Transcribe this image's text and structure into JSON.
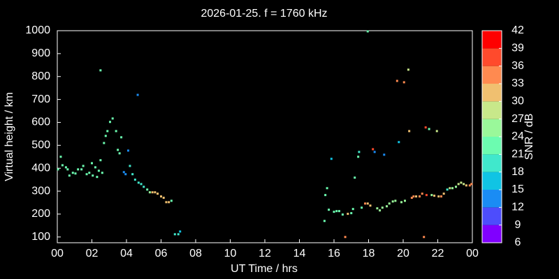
{
  "chart_data": {
    "type": "scatter",
    "title": "2026-01-25. f = 1760 kHz",
    "x_label": "UT Time / hrs",
    "y_label": "Virtual height / km",
    "xlim": [
      0,
      24
    ],
    "ylim": [
      75,
      1000
    ],
    "xticks": [
      {
        "value": 0,
        "label": "00"
      },
      {
        "value": 2,
        "label": "02"
      },
      {
        "value": 4,
        "label": "04"
      },
      {
        "value": 6,
        "label": "06"
      },
      {
        "value": 8,
        "label": "08"
      },
      10,
      12,
      14,
      16,
      18,
      20,
      22,
      {
        "value": 24,
        "label": "00"
      }
    ],
    "yticks": [
      100,
      200,
      300,
      400,
      500,
      600,
      700,
      800,
      900,
      1000
    ],
    "x": [
      0.04,
      0.2,
      0.3,
      0.5,
      0.6,
      0.7,
      0.9,
      1.05,
      1.2,
      1.4,
      1.5,
      1.7,
      1.85,
      2.0,
      2.05,
      2.2,
      2.3,
      2.4,
      2.5,
      2.6,
      2.7,
      2.8,
      2.9,
      3.05,
      3.2,
      3.4,
      3.5,
      3.6,
      3.7,
      3.85,
      3.95,
      4.1,
      4.2,
      4.35,
      4.5,
      4.7,
      4.85,
      5.0,
      5.2,
      5.35,
      5.5,
      5.65,
      5.8,
      6.0,
      6.15,
      6.3,
      6.45,
      6.6,
      6.8,
      7.0,
      7.1,
      2.5,
      4.65,
      15.45,
      15.5,
      15.6,
      15.7,
      15.85,
      16.0,
      16.15,
      16.3,
      16.5,
      16.65,
      16.8,
      17.0,
      17.1,
      17.2,
      17.4,
      17.45,
      17.6,
      17.8,
      17.95,
      18.1,
      18.25,
      18.35,
      18.5,
      18.65,
      18.8,
      18.9,
      19.05,
      19.2,
      19.4,
      19.55,
      19.65,
      19.75,
      19.9,
      20.05,
      20.1,
      20.3,
      20.35,
      20.5,
      20.6,
      20.75,
      20.95,
      21.1,
      21.2,
      21.3,
      21.35,
      21.5,
      21.65,
      21.8,
      21.95,
      22.05,
      22.2,
      22.35,
      22.55,
      22.7,
      22.85,
      23.05,
      23.2,
      23.35,
      23.5,
      23.65,
      23.85,
      23.95,
      17.95
    ],
    "values": [
      395,
      450,
      413,
      404,
      395,
      368,
      380,
      377,
      395,
      395,
      410,
      374,
      380,
      422,
      368,
      404,
      362,
      389,
      435,
      380,
      510,
      541,
      562,
      602,
      617,
      562,
      480,
      465,
      535,
      383,
      374,
      477,
      410,
      374,
      350,
      337,
      331,
      319,
      307,
      295,
      295,
      295,
      289,
      277,
      271,
      252,
      252,
      258,
      112,
      112,
      124,
      827,
      720,
      170,
      283,
      313,
      219,
      441,
      210,
      213,
      213,
      198,
      100,
      201,
      204,
      222,
      359,
      450,
      471,
      228,
      246,
      246,
      237,
      483,
      471,
      225,
      216,
      228,
      459,
      234,
      246,
      255,
      258,
      781,
      514,
      252,
      775,
      258,
      830,
      562,
      271,
      277,
      277,
      277,
      289,
      100,
      578,
      283,
      571,
      283,
      280,
      562,
      277,
      277,
      289,
      307,
      313,
      313,
      319,
      331,
      337,
      331,
      325,
      325,
      331,
      997
    ],
    "snr": [
      21,
      21,
      22,
      22,
      21,
      21,
      22,
      22,
      21,
      22,
      21,
      22,
      21,
      22,
      22,
      22,
      22,
      22,
      21,
      22,
      21,
      21,
      21,
      21,
      21,
      22,
      21,
      21,
      21,
      13,
      13,
      13,
      19,
      19,
      19,
      19,
      18,
      18,
      22,
      24,
      31,
      31,
      32,
      31,
      31,
      32,
      31,
      23,
      19,
      19,
      16,
      21,
      13,
      21,
      21,
      21,
      21,
      16,
      22,
      22,
      22,
      22,
      34,
      32,
      23,
      23,
      21,
      21,
      20,
      22,
      33,
      31,
      32,
      37,
      13,
      24,
      26,
      24,
      13,
      24,
      24,
      25,
      26,
      34,
      17,
      24,
      34,
      25,
      28,
      32,
      33,
      33,
      32,
      33,
      33,
      34,
      38,
      36,
      23,
      25,
      32,
      27,
      32,
      33,
      31,
      19,
      27,
      26,
      26,
      27,
      27,
      28,
      31,
      33,
      35,
      22
    ],
    "colorbar": {
      "label": "SNR / dB",
      "lim": [
        6,
        42
      ],
      "ticks": [
        6,
        9,
        12,
        15,
        18,
        21,
        24,
        27,
        30,
        33,
        36,
        39,
        42
      ],
      "colors": [
        "#8000ff",
        "#4d4dfc",
        "#1a8cf4",
        "#10c4e4",
        "#40e8cc",
        "#6cfcb0",
        "#9af89a",
        "#c8e88a",
        "#f0c070",
        "#ff8a50",
        "#ff4a2c",
        "#ff0000"
      ]
    }
  }
}
